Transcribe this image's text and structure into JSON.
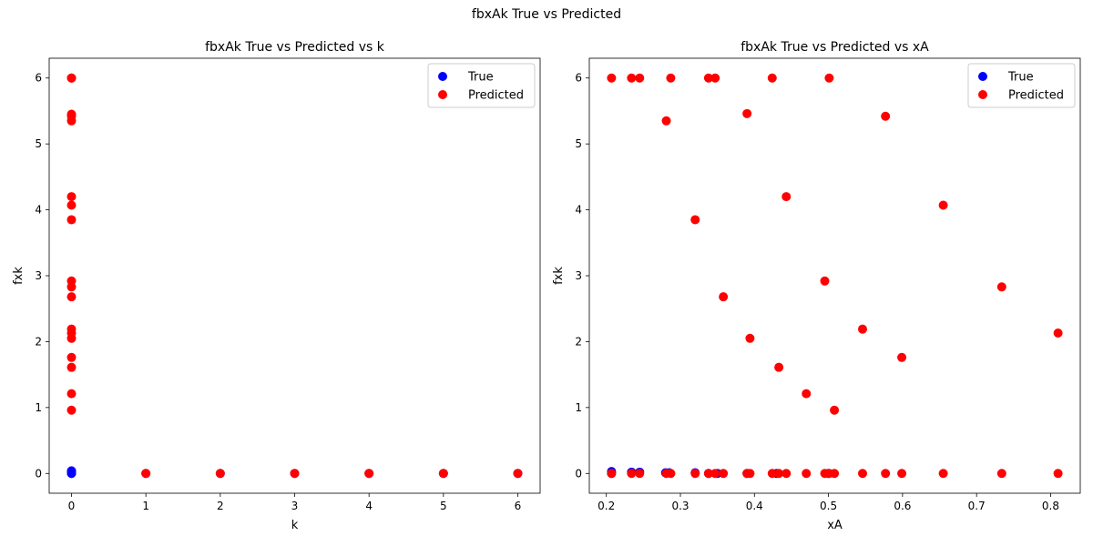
{
  "figure": {
    "suptitle": "fbxAk True vs Predicted"
  },
  "colors": {
    "true_series": "#0000ff",
    "predicted_series": "#ff0000"
  },
  "chart_data": [
    {
      "type": "scatter",
      "title": "fbxAk True vs Predicted vs k",
      "xlabel": "k",
      "ylabel": "fxk",
      "xlim": [
        -0.3,
        6.3
      ],
      "ylim": [
        -0.3,
        6.3
      ],
      "xticks": [
        0,
        1,
        2,
        3,
        4,
        5,
        6
      ],
      "yticks": [
        0,
        1,
        2,
        3,
        4,
        5,
        6
      ],
      "legend": {
        "placement": "top-right"
      },
      "series": [
        {
          "name": "True",
          "color": "#0000ff",
          "points": [
            [
              0,
              0.0
            ],
            [
              0,
              0.01
            ],
            [
              0,
              0.02
            ],
            [
              0,
              0.03
            ],
            [
              0,
              0.04
            ],
            [
              0,
              0.0
            ],
            [
              0,
              0.01
            ],
            [
              0,
              0.02
            ],
            [
              1,
              0.0
            ],
            [
              2,
              0.0
            ],
            [
              3,
              0.0
            ],
            [
              4,
              0.0
            ],
            [
              5,
              0.0
            ],
            [
              6,
              0.0
            ]
          ]
        },
        {
          "name": "Predicted",
          "color": "#ff0000",
          "points": [
            [
              0,
              6.0
            ],
            [
              0,
              6.0
            ],
            [
              0,
              5.45
            ],
            [
              0,
              5.42
            ],
            [
              0,
              5.35
            ],
            [
              0,
              4.2
            ],
            [
              0,
              4.07
            ],
            [
              0,
              3.85
            ],
            [
              0,
              2.92
            ],
            [
              0,
              2.83
            ],
            [
              0,
              2.68
            ],
            [
              0,
              2.19
            ],
            [
              0,
              2.13
            ],
            [
              0,
              2.05
            ],
            [
              0,
              1.76
            ],
            [
              0,
              1.61
            ],
            [
              0,
              1.21
            ],
            [
              0,
              0.96
            ],
            [
              1,
              0.0
            ],
            [
              2,
              0.0
            ],
            [
              3,
              0.0
            ],
            [
              4,
              0.0
            ],
            [
              5,
              0.0
            ],
            [
              6,
              0.0
            ]
          ]
        }
      ]
    },
    {
      "type": "scatter",
      "title": "fbxAk True vs Predicted vs xA",
      "xlabel": "xA",
      "ylabel": "fxk",
      "xlim": [
        0.177,
        0.84
      ],
      "ylim": [
        -0.3,
        6.3
      ],
      "xticks": [
        0.2,
        0.3,
        0.4,
        0.5,
        0.6,
        0.7,
        0.8
      ],
      "yticks": [
        0,
        1,
        2,
        3,
        4,
        5,
        6
      ],
      "legend": {
        "placement": "top-right"
      },
      "series": [
        {
          "name": "True",
          "color": "#0000ff",
          "points": [
            [
              0.207,
              0.03
            ],
            [
              0.207,
              0.0
            ],
            [
              0.234,
              0.02
            ],
            [
              0.245,
              0.02
            ],
            [
              0.28,
              0.01
            ],
            [
              0.285,
              0.01
            ],
            [
              0.32,
              0.01
            ],
            [
              0.338,
              0.0
            ],
            [
              0.35,
              0.0
            ],
            [
              0.39,
              0.0
            ],
            [
              0.43,
              0.0
            ],
            [
              0.5,
              0.0
            ]
          ]
        },
        {
          "name": "Predicted",
          "color": "#ff0000",
          "points": [
            [
              0.207,
              6.0
            ],
            [
              0.234,
              6.0
            ],
            [
              0.245,
              6.0
            ],
            [
              0.287,
              6.0
            ],
            [
              0.338,
              6.0
            ],
            [
              0.347,
              6.0
            ],
            [
              0.424,
              6.0
            ],
            [
              0.501,
              6.0
            ],
            [
              0.281,
              5.35
            ],
            [
              0.39,
              5.46
            ],
            [
              0.577,
              5.42
            ],
            [
              0.443,
              4.2
            ],
            [
              0.655,
              4.07
            ],
            [
              0.32,
              3.85
            ],
            [
              0.495,
              2.92
            ],
            [
              0.734,
              2.83
            ],
            [
              0.358,
              2.68
            ],
            [
              0.546,
              2.19
            ],
            [
              0.81,
              2.13
            ],
            [
              0.394,
              2.05
            ],
            [
              0.599,
              1.76
            ],
            [
              0.433,
              1.61
            ],
            [
              0.47,
              1.21
            ],
            [
              0.508,
              0.96
            ],
            [
              0.207,
              0.0
            ],
            [
              0.234,
              0.0
            ],
            [
              0.245,
              0.0
            ],
            [
              0.281,
              0.0
            ],
            [
              0.287,
              0.0
            ],
            [
              0.32,
              0.0
            ],
            [
              0.338,
              0.0
            ],
            [
              0.347,
              0.0
            ],
            [
              0.358,
              0.0
            ],
            [
              0.39,
              0.0
            ],
            [
              0.394,
              0.0
            ],
            [
              0.424,
              0.0
            ],
            [
              0.433,
              0.0
            ],
            [
              0.443,
              0.0
            ],
            [
              0.47,
              0.0
            ],
            [
              0.495,
              0.0
            ],
            [
              0.501,
              0.0
            ],
            [
              0.508,
              0.0
            ],
            [
              0.546,
              0.0
            ],
            [
              0.577,
              0.0
            ],
            [
              0.599,
              0.0
            ],
            [
              0.655,
              0.0
            ],
            [
              0.734,
              0.0
            ],
            [
              0.81,
              0.0
            ]
          ]
        }
      ]
    }
  ]
}
